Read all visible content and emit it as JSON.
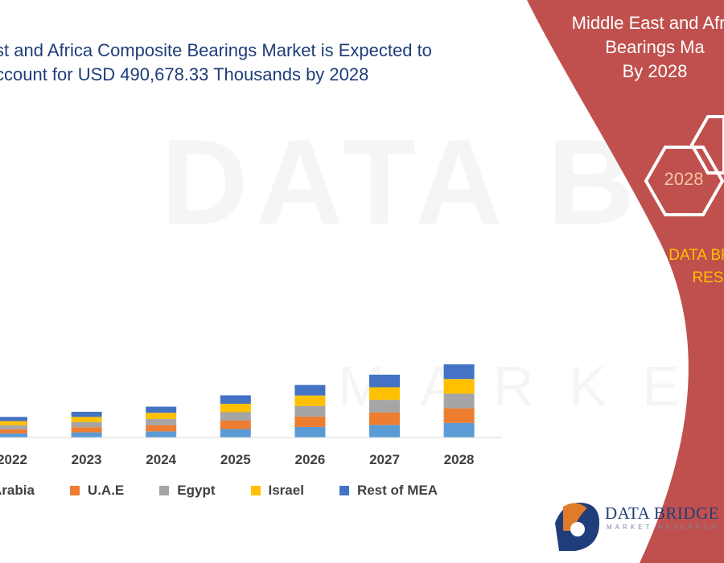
{
  "headline": {
    "line1": "st and Africa Composite Bearings Market is Expected to",
    "line2": "ccount for USD 490,678.33 Thousands by 2028"
  },
  "watermark": {
    "line1": "DATA BRIDGE",
    "line2": "MARKET RESEARCH"
  },
  "chart_data": {
    "type": "bar",
    "stacked": true,
    "categories": [
      "2022",
      "2023",
      "2024",
      "2025",
      "2026",
      "2027",
      "2028"
    ],
    "series": [
      {
        "name": "Arabia",
        "color": "#5b9bd5",
        "values": [
          20,
          25,
          30,
          41,
          51,
          61,
          71
        ]
      },
      {
        "name": "U.A.E",
        "color": "#ed7d31",
        "values": [
          20,
          25,
          30,
          41,
          51,
          61,
          71
        ]
      },
      {
        "name": "Egypt",
        "color": "#a5a5a5",
        "values": [
          20,
          25,
          30,
          41,
          51,
          61,
          71
        ]
      },
      {
        "name": "Israel",
        "color": "#ffc000",
        "values": [
          20,
          25,
          30,
          41,
          51,
          61,
          71
        ]
      },
      {
        "name": "Rest of MEA",
        "color": "#4472c4",
        "values": [
          20,
          25,
          30,
          41,
          51,
          61,
          71
        ]
      }
    ],
    "legend_position": "bottom",
    "grid": false
  },
  "panel": {
    "title_line1": "Middle East and Afric",
    "title_line2": "Bearings Ma",
    "title_line3": "By 2028",
    "hex_year": "2028",
    "brand_line1": "DATA BRID",
    "brand_line2": "RES",
    "color": "#c0504d"
  },
  "logo": {
    "name": "DATA BRIDGE",
    "tagline": "MARKET RESEARCH"
  }
}
